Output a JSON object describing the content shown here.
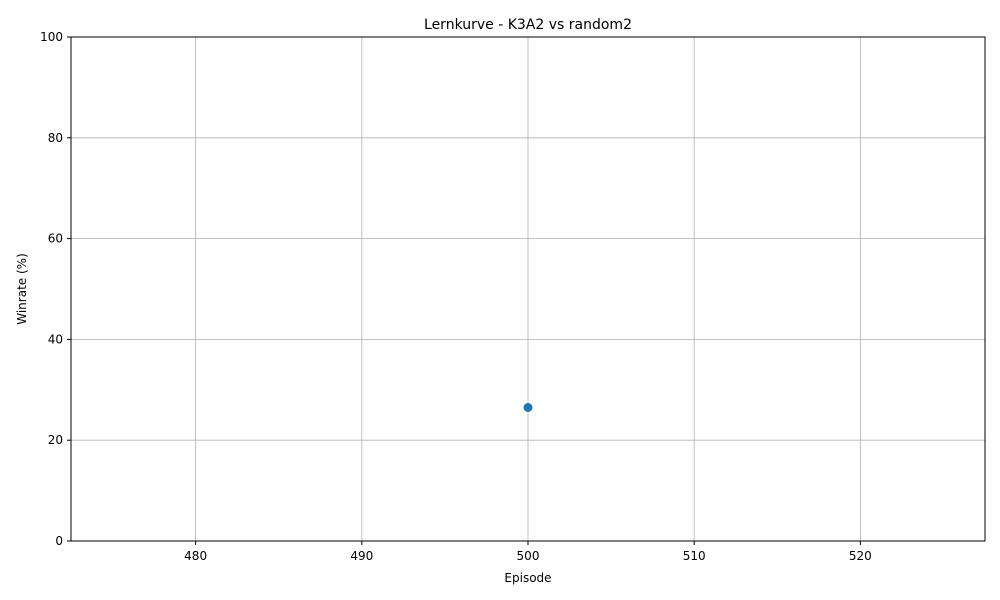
{
  "chart_data": {
    "type": "scatter",
    "title": "Lernkurve - K3A2 vs random2",
    "xlabel": "Episode",
    "ylabel": "Winrate (%)",
    "xlim": [
      472.5,
      527.5
    ],
    "ylim": [
      0,
      100
    ],
    "xticks": [
      480,
      490,
      500,
      510,
      520
    ],
    "yticks": [
      0,
      20,
      40,
      60,
      80,
      100
    ],
    "grid": true,
    "series": [
      {
        "name": "Winrate",
        "color": "#1f77b4",
        "x": [
          500
        ],
        "y": [
          26.5
        ]
      }
    ]
  }
}
